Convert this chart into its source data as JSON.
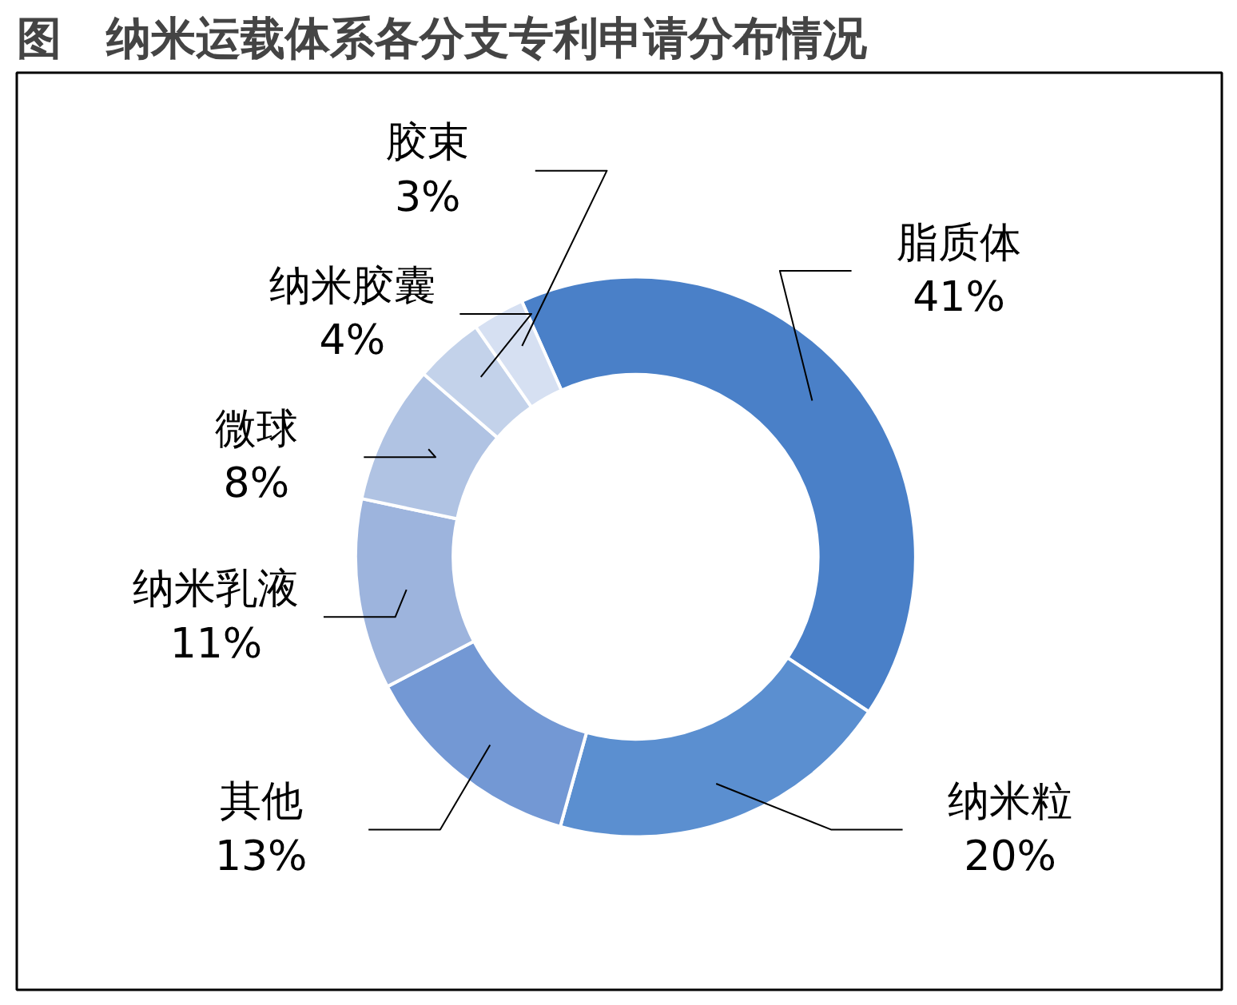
{
  "chart_data": {
    "type": "donut",
    "title": "图　纳米运载体系各分支专利申请分布情况",
    "categories": [
      "脂质体",
      "纳米粒",
      "其他",
      "纳米乳液",
      "微球",
      "纳米胶囊",
      "胶束"
    ],
    "values": [
      41,
      20,
      13,
      11,
      8,
      4,
      3
    ],
    "value_labels": [
      "41%",
      "20%",
      "13%",
      "11%",
      "8%",
      "4%",
      "3%"
    ],
    "colors": [
      "#4a80c8",
      "#5b8fd0",
      "#7398d4",
      "#9db4dd",
      "#b0c3e3",
      "#c3d2ea",
      "#d6e0f2"
    ]
  }
}
